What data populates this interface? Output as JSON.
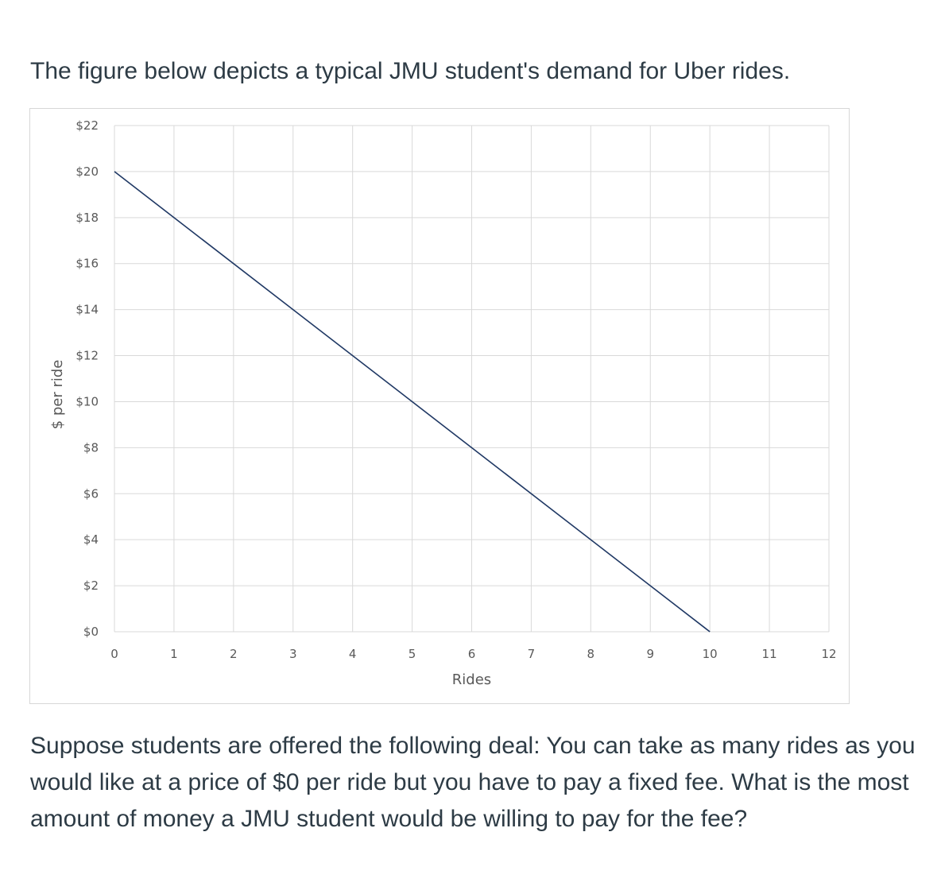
{
  "intro_text": "The figure below depicts a typical JMU student's demand for Uber rides.",
  "question_text": "Suppose students are offered the following deal:  You can take as many rides as you would like at a price of $0 per ride but you have to pay a fixed fee. What is the most amount of money a JMU student would be willing to pay for the fee?",
  "chart_data": {
    "type": "line",
    "title": "",
    "xlabel": "Rides",
    "ylabel": "$ per ride",
    "xlim": [
      0,
      12
    ],
    "ylim": [
      0,
      22
    ],
    "x_ticks": [
      "0",
      "1",
      "2",
      "3",
      "4",
      "5",
      "6",
      "7",
      "8",
      "9",
      "10",
      "11",
      "12"
    ],
    "y_ticks": [
      "$0",
      "$2",
      "$4",
      "$6",
      "$8",
      "$10",
      "$12",
      "$14",
      "$16",
      "$18",
      "$20",
      "$22"
    ],
    "grid": true,
    "legend": "none",
    "series": [
      {
        "x": [
          0,
          10
        ],
        "y": [
          20,
          0
        ],
        "color": "#1f3864"
      }
    ],
    "gridline_color": "#d9d9d9"
  }
}
